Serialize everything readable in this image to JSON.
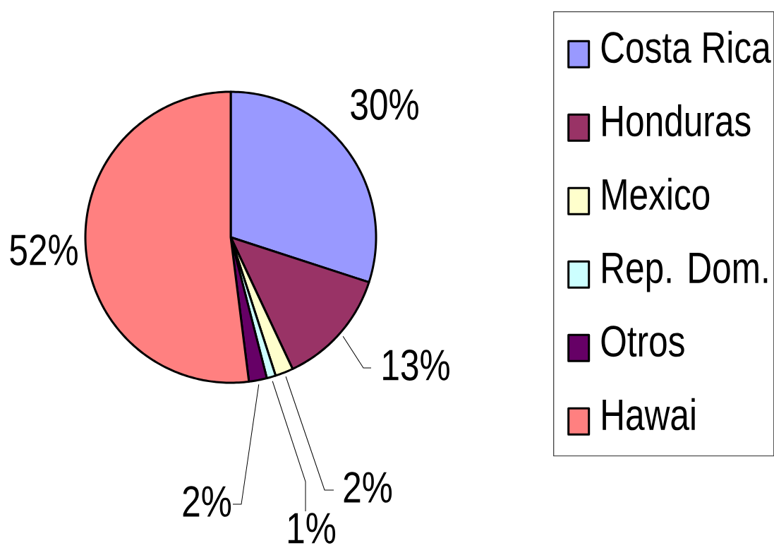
{
  "chart_data": {
    "type": "pie",
    "categories": [
      "Costa Rica",
      "Honduras",
      "Mexico",
      "Rep. Dom.",
      "Otros",
      "Hawai"
    ],
    "values": [
      30,
      13,
      2,
      1,
      2,
      52
    ],
    "colors": [
      "#9999ff",
      "#993366",
      "#ffffcc",
      "#ccffff",
      "#660066",
      "#ff8080"
    ],
    "value_labels": [
      "30%",
      "13%",
      "2%",
      "1%",
      "2%",
      "52%"
    ],
    "legend": "right"
  }
}
